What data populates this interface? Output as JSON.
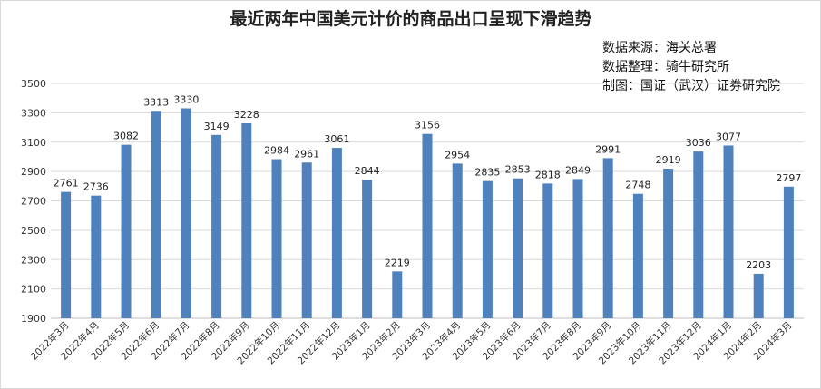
{
  "chart_data": {
    "type": "bar",
    "title": "最近两年中国美元计价的商品出口呈现下滑趋势",
    "notes": [
      "数据来源：海关总署",
      "数据整理：骑牛研究所",
      "制图：国证（武汉）证券研究院"
    ],
    "categories": [
      "2022年3月",
      "2022年4月",
      "2022年5月",
      "2022年6月",
      "2022年7月",
      "2022年8月",
      "2022年9月",
      "2022年10月",
      "2022年11月",
      "2022年12月",
      "2023年1月",
      "2023年2月",
      "2023年3月",
      "2023年4月",
      "2023年5月",
      "2023年6月",
      "2023年7月",
      "2023年8月",
      "2023年9月",
      "2023年10月",
      "2023年11月",
      "2023年12月",
      "2024年1月",
      "2024年2月",
      "2024年3月"
    ],
    "values": [
      2761,
      2736,
      3082,
      3313,
      3330,
      3149,
      3228,
      2984,
      2961,
      3061,
      2844,
      2219,
      3156,
      2954,
      2835,
      2853,
      2818,
      2849,
      2991,
      2748,
      2919,
      3036,
      3077,
      2203,
      2797
    ],
    "ylim": [
      1900,
      3500
    ],
    "yticks": [
      1900,
      2100,
      2300,
      2500,
      2700,
      2900,
      3100,
      3300,
      3500
    ],
    "bar_color": "#4f81bd",
    "grid": true,
    "legend": "none"
  }
}
